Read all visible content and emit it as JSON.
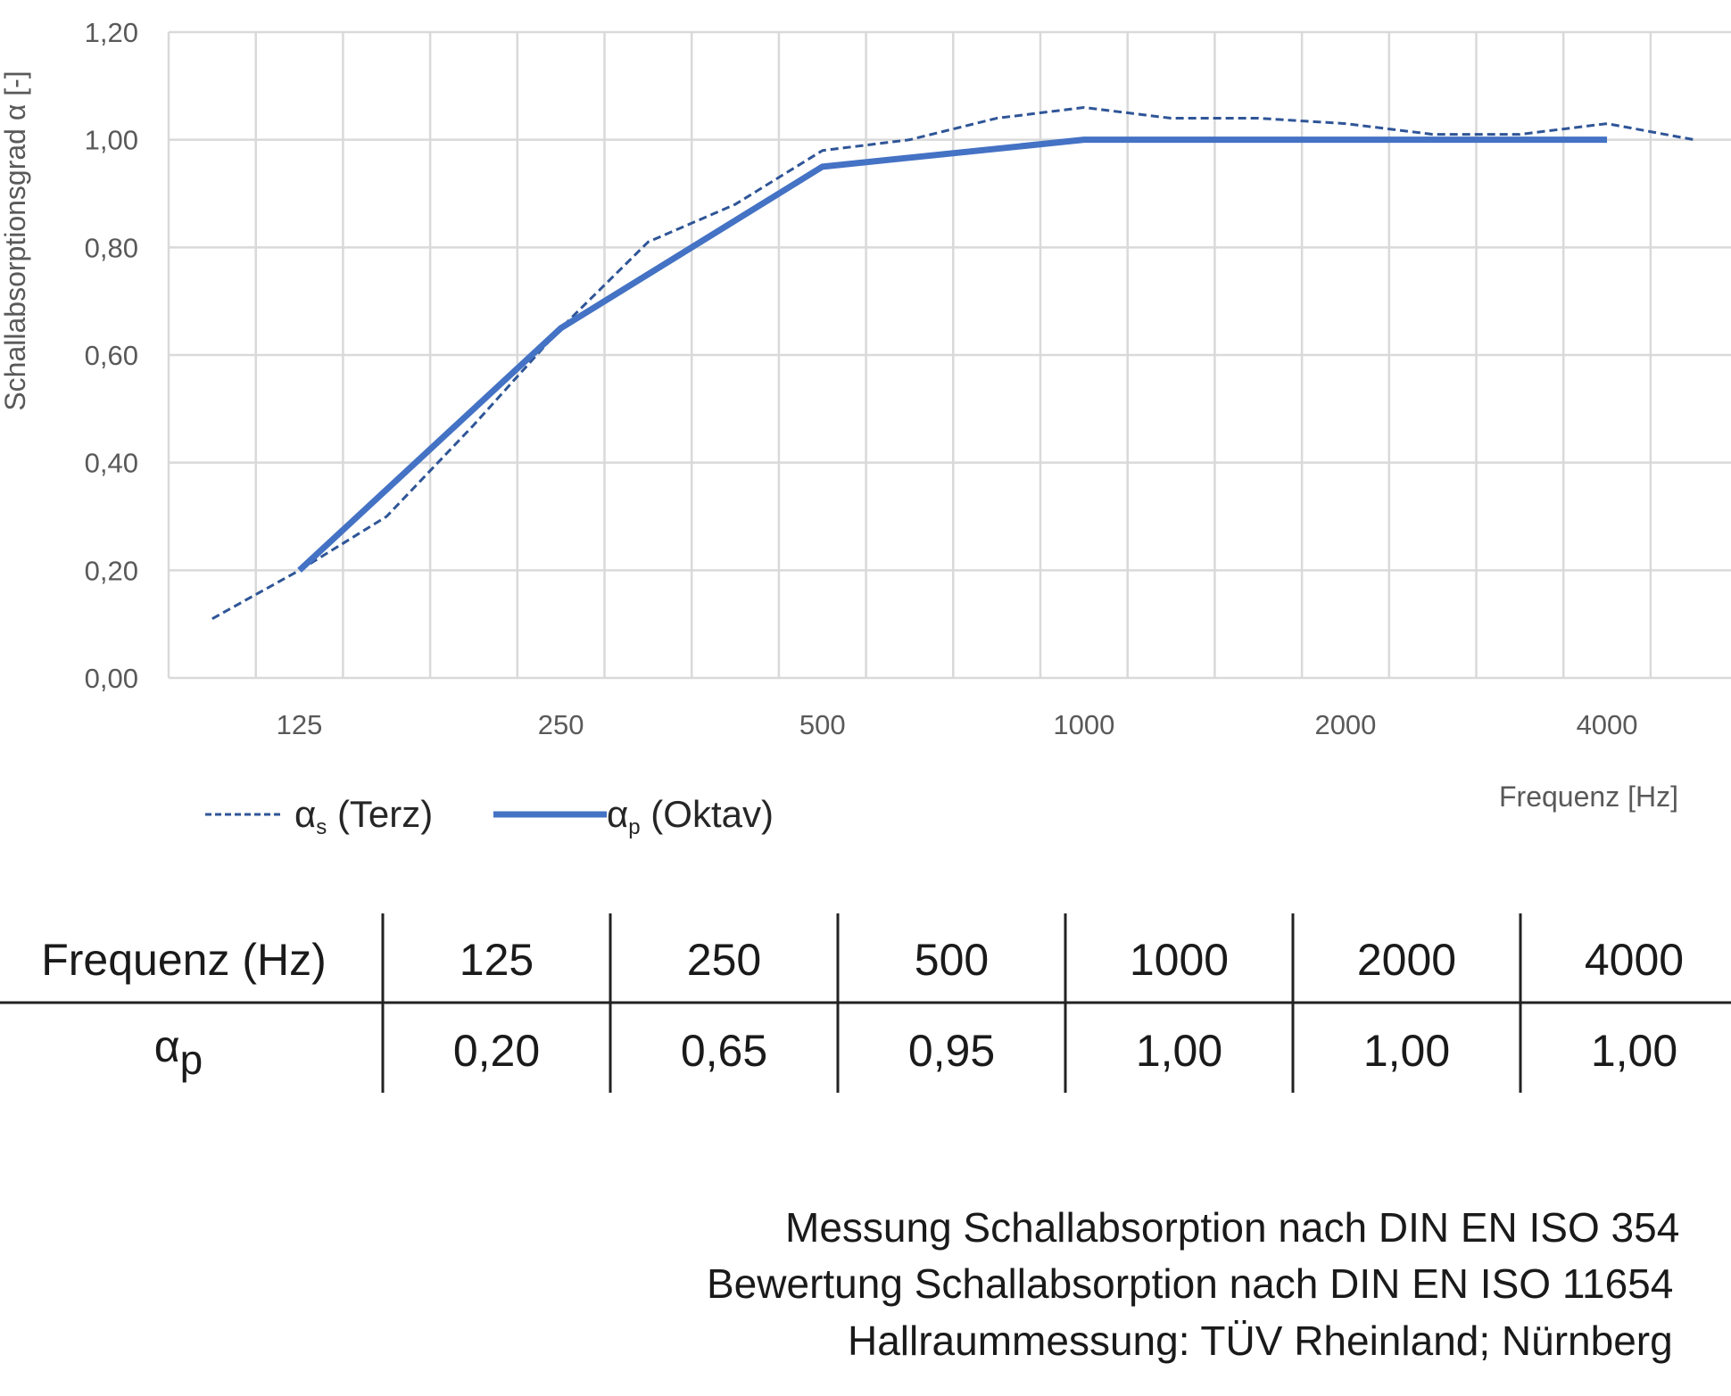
{
  "chart_data": {
    "type": "line",
    "title": "",
    "ylabel": "Schallabsorptionsgrad α [-]",
    "xlabel": "Frequenz [Hz]",
    "ylim": [
      0,
      1.2
    ],
    "yticks": [
      "0,00",
      "0,20",
      "0,40",
      "0,60",
      "0,80",
      "1,00",
      "1,20"
    ],
    "grid": true,
    "legend_position": "bottom-left",
    "x": [
      100,
      125,
      160,
      200,
      250,
      315,
      400,
      500,
      630,
      800,
      1000,
      1250,
      1600,
      2000,
      2500,
      3150,
      4000,
      5000
    ],
    "xtick_labels": [
      "125",
      "250",
      "500",
      "1000",
      "2000",
      "4000"
    ],
    "series": [
      {
        "name": "αs (Terz)",
        "symbol": "α",
        "sub": "s",
        "suffix": " (Terz)",
        "style": "dashed",
        "color": "#2F5597",
        "x": [
          100,
          125,
          160,
          200,
          250,
          315,
          400,
          500,
          630,
          800,
          1000,
          1250,
          1600,
          2000,
          2500,
          3150,
          4000,
          5000
        ],
        "values": [
          0.11,
          0.2,
          0.3,
          0.47,
          0.65,
          0.81,
          0.88,
          0.98,
          1.0,
          1.04,
          1.06,
          1.04,
          1.04,
          1.03,
          1.01,
          1.01,
          1.03,
          1.0
        ]
      },
      {
        "name": "αp (Oktav)",
        "symbol": "α",
        "sub": "p",
        "suffix": " (Oktav)",
        "style": "solid",
        "color": "#4472C4",
        "x": [
          125,
          250,
          500,
          1000,
          2000,
          4000
        ],
        "values": [
          0.2,
          0.65,
          0.95,
          1.0,
          1.0,
          1.0
        ]
      }
    ]
  },
  "table": {
    "header_label": "Frequenz (Hz)",
    "row_label_symbol": "α",
    "row_label_sub": "p",
    "frequencies": [
      "125",
      "250",
      "500",
      "1000",
      "2000",
      "4000"
    ],
    "values": [
      "0,20",
      "0,65",
      "0,95",
      "1,00",
      "1,00",
      "1,00"
    ]
  },
  "notes": [
    "Messung Schallabsorption nach DIN EN ISO 354",
    "Bewertung Schallabsorption nach DIN EN ISO 11654",
    "Hallraummessung: TÜV Rheinland; Nürnberg"
  ]
}
